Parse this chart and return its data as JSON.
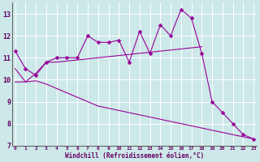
{
  "xlabel": "Windchill (Refroidissement éolien,°C)",
  "x_values": [
    0,
    1,
    2,
    3,
    4,
    5,
    6,
    7,
    8,
    9,
    10,
    11,
    12,
    13,
    14,
    15,
    16,
    17,
    18,
    19,
    20,
    21,
    22,
    23
  ],
  "line1_y": [
    11.3,
    10.5,
    10.2,
    10.8,
    11.0,
    11.0,
    11.0,
    12.0,
    11.7,
    11.7,
    11.8,
    10.8,
    12.2,
    11.2,
    12.5,
    12.0,
    13.2,
    12.8,
    11.2,
    9.0,
    8.5,
    8.0,
    7.5,
    7.3
  ],
  "line2_y": [
    10.5,
    9.9,
    10.3,
    10.8,
    10.8,
    10.85,
    10.9,
    10.95,
    11.0,
    11.05,
    11.1,
    11.15,
    11.2,
    11.25,
    11.3,
    11.35,
    11.4,
    11.45,
    11.5,
    null,
    null,
    null,
    null,
    null
  ],
  "line3_y": [
    9.9,
    9.9,
    9.95,
    9.8,
    9.6,
    9.4,
    9.2,
    9.0,
    8.8,
    8.7,
    8.6,
    8.5,
    8.4,
    8.3,
    8.2,
    8.1,
    8.0,
    7.9,
    7.8,
    7.7,
    7.6,
    7.5,
    7.4,
    7.3
  ],
  "ylim": [
    7,
    13.5
  ],
  "xlim": [
    -0.3,
    23.3
  ],
  "yticks": [
    7,
    8,
    9,
    10,
    11,
    12,
    13
  ],
  "xtick_labels": [
    "0",
    "1",
    "2",
    "3",
    "4",
    "5",
    "6",
    "7",
    "8",
    "9",
    "10",
    "11",
    "12",
    "13",
    "14",
    "15",
    "16",
    "17",
    "18",
    "19",
    "20",
    "21",
    "22",
    "23"
  ],
  "line_color": "#990099",
  "bg_color": "#cce8e8",
  "grid_color": "#ffffff",
  "marker": "D",
  "marker_size": 2.5,
  "line_width": 0.8
}
